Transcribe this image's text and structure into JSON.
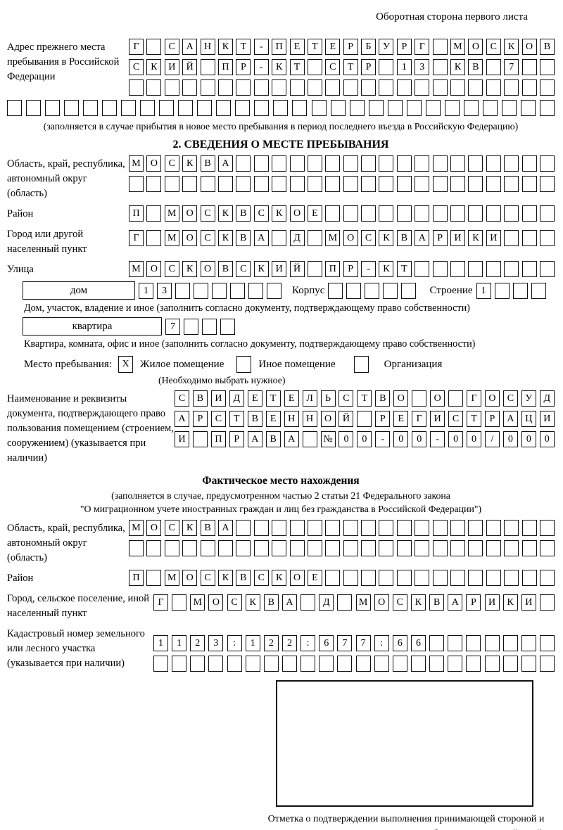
{
  "page": {
    "header_note": "Оборотная сторона первого листа"
  },
  "prev_address": {
    "label": "Адрес прежнего места пребывания в Российской Федерации",
    "rows": [
      [
        "Г",
        "",
        "С",
        "А",
        "Н",
        "К",
        "Т",
        "-",
        "П",
        "Е",
        "Т",
        "Е",
        "Р",
        "Б",
        "У",
        "Р",
        "Г",
        "",
        "М",
        "О",
        "С",
        "К",
        "О",
        "В"
      ],
      [
        "С",
        "К",
        "И",
        "Й",
        "",
        "П",
        "Р",
        "-",
        "К",
        "Т",
        "",
        "С",
        "Т",
        "Р",
        "",
        "1",
        "3",
        "",
        "К",
        "В",
        "",
        "7",
        "",
        ""
      ],
      [
        "",
        "",
        "",
        "",
        "",
        "",
        "",
        "",
        "",
        "",
        "",
        "",
        "",
        "",
        "",
        "",
        "",
        "",
        "",
        "",
        "",
        "",
        "",
        ""
      ]
    ],
    "extra_row": [
      "",
      "",
      "",
      "",
      "",
      "",
      "",
      "",
      "",
      "",
      "",
      "",
      "",
      "",
      "",
      "",
      "",
      "",
      "",
      "",
      "",
      "",
      "",
      "",
      "",
      "",
      "",
      "",
      ""
    ],
    "caption": "(заполняется в случае прибытия в новое место пребывания в период последнего въезда в Российскую Федерацию)"
  },
  "section2": {
    "title": "2. СВЕДЕНИЯ О МЕСТЕ ПРЕБЫВАНИЯ",
    "region": {
      "label": "Область, край, республика, автономный округ (область)",
      "rows": [
        [
          "М",
          "О",
          "С",
          "К",
          "В",
          "А",
          "",
          "",
          "",
          "",
          "",
          "",
          "",
          "",
          "",
          "",
          "",
          "",
          "",
          "",
          "",
          "",
          "",
          ""
        ],
        [
          "",
          "",
          "",
          "",
          "",
          "",
          "",
          "",
          "",
          "",
          "",
          "",
          "",
          "",
          "",
          "",
          "",
          "",
          "",
          "",
          "",
          "",
          "",
          ""
        ]
      ]
    },
    "district": {
      "label": "Район",
      "cells": [
        "П",
        "",
        "М",
        "О",
        "С",
        "К",
        "В",
        "С",
        "К",
        "О",
        "Е",
        "",
        "",
        "",
        "",
        "",
        "",
        "",
        "",
        "",
        "",
        "",
        "",
        ""
      ]
    },
    "city": {
      "label": "Город или другой населенный пункт",
      "cells": [
        "Г",
        "",
        "М",
        "О",
        "С",
        "К",
        "В",
        "А",
        "",
        "Д",
        "",
        "М",
        "О",
        "С",
        "К",
        "В",
        "А",
        "Р",
        "И",
        "К",
        "И",
        "",
        "",
        ""
      ]
    },
    "street": {
      "label": "Улица",
      "cells": [
        "М",
        "О",
        "С",
        "К",
        "О",
        "В",
        "С",
        "К",
        "И",
        "Й",
        "",
        "П",
        "Р",
        "-",
        "К",
        "Т",
        "",
        "",
        "",
        "",
        "",
        "",
        "",
        ""
      ]
    },
    "house": {
      "box_label": "дом",
      "cells": [
        "1",
        "3",
        "",
        "",
        "",
        "",
        "",
        ""
      ],
      "korpus_label": "Корпус",
      "korpus_cells": [
        "",
        "",
        "",
        "",
        ""
      ],
      "stroenie_label": "Строение",
      "stroenie_cells": [
        "1",
        "",
        "",
        ""
      ]
    },
    "house_caption": "Дом, участок, владение и иное (заполнить согласно документу, подтверждающему право собственности)",
    "apartment": {
      "box_label": "квартира",
      "cells": [
        "7",
        "",
        "",
        ""
      ]
    },
    "apartment_caption": "Квартира, комната, офис и иное (заполнить согласно документу, подтверждающему право собственности)",
    "place_type": {
      "label": "Место пребывания:",
      "options": [
        {
          "label": "Жилое помещение",
          "mark": "X"
        },
        {
          "label": "Иное помещение",
          "mark": ""
        },
        {
          "label": "Организация",
          "mark": ""
        }
      ],
      "caption": "(Необходимо выбрать нужное)"
    },
    "document": {
      "label": "Наименование и реквизиты документа, подтверждающего право пользования помещением (строением, сооружением) (указывается при наличии)",
      "rows": [
        [
          "С",
          "В",
          "И",
          "Д",
          "Е",
          "Т",
          "Е",
          "Л",
          "Ь",
          "С",
          "Т",
          "В",
          "О",
          "",
          "О",
          "",
          "Г",
          "О",
          "С",
          "У",
          "Д"
        ],
        [
          "А",
          "Р",
          "С",
          "Т",
          "В",
          "Е",
          "Н",
          "Н",
          "О",
          "Й",
          "",
          "Р",
          "Е",
          "Г",
          "И",
          "С",
          "Т",
          "Р",
          "А",
          "Ц",
          "И"
        ],
        [
          "И",
          "",
          "П",
          "Р",
          "А",
          "В",
          "А",
          "",
          "№",
          "0",
          "0",
          "-",
          "0",
          "0",
          "-",
          "0",
          "0",
          "/",
          "0",
          "0",
          "0"
        ]
      ]
    }
  },
  "actual_location": {
    "title": "Фактическое место нахождения",
    "caption_line1": "(заполняется в случае, предусмотренном частью 2 статьи 21 Федерального закона",
    "caption_line2": "\"О миграционном учете иностранных граждан и лиц без гражданства в Российской Федерации\")",
    "region": {
      "label": "Область, край, республика, автономный округ (область)",
      "rows": [
        [
          "М",
          "О",
          "С",
          "К",
          "В",
          "А",
          "",
          "",
          "",
          "",
          "",
          "",
          "",
          "",
          "",
          "",
          "",
          "",
          "",
          "",
          "",
          "",
          "",
          ""
        ],
        [
          "",
          "",
          "",
          "",
          "",
          "",
          "",
          "",
          "",
          "",
          "",
          "",
          "",
          "",
          "",
          "",
          "",
          "",
          "",
          "",
          "",
          "",
          "",
          ""
        ]
      ]
    },
    "district": {
      "label": "Район",
      "cells": [
        "П",
        "",
        "М",
        "О",
        "С",
        "К",
        "В",
        "С",
        "К",
        "О",
        "Е",
        "",
        "",
        "",
        "",
        "",
        "",
        "",
        "",
        "",
        "",
        "",
        "",
        ""
      ]
    },
    "city": {
      "label": "Город, сельское поселение, иной населенный пункт",
      "cells": [
        "Г",
        "",
        "М",
        "О",
        "С",
        "К",
        "В",
        "А",
        "",
        "Д",
        "",
        "М",
        "О",
        "С",
        "К",
        "В",
        "А",
        "Р",
        "И",
        "К",
        "И",
        ""
      ]
    },
    "cadastral": {
      "label": "Кадастровый номер земельного или лесного участка (указывается при наличии)",
      "rows": [
        [
          "1",
          "1",
          "2",
          "3",
          ":",
          "1",
          "2",
          "2",
          ":",
          "6",
          "7",
          "7",
          ":",
          "6",
          "6",
          "",
          "",
          "",
          "",
          "",
          "",
          ""
        ],
        [
          "",
          "",
          "",
          "",
          "",
          "",
          "",
          "",
          "",
          "",
          "",
          "",
          "",
          "",
          "",
          "",
          "",
          "",
          "",
          "",
          "",
          ""
        ]
      ]
    }
  },
  "stamp": {
    "caption": "Отметка о подтверждении выполнения принимающей стороной и иностранным гражданином или лицом без гражданства действий, необходимых для его постановки на учет по месту пребывания"
  }
}
